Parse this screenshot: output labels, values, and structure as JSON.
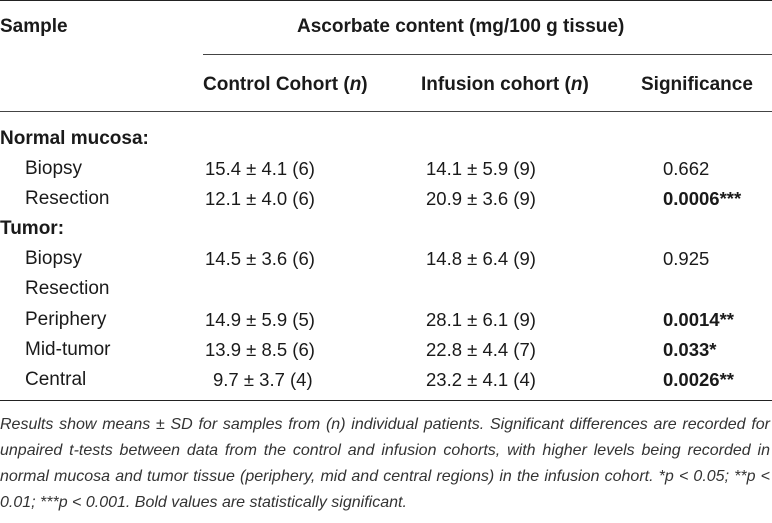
{
  "header": {
    "sample_label": "Sample",
    "group_title": "Ascorbate content (mg/100 g tissue)",
    "col_control": "Control Cohort (",
    "col_control_n": "n",
    "col_control_close": ")",
    "col_infusion": "Infusion cohort (",
    "col_infusion_n": "n",
    "col_infusion_close": ")",
    "col_significance": "Significance"
  },
  "sections": [
    {
      "title": "Normal mucosa:",
      "rows": [
        {
          "label": "Biopsy",
          "control": "15.4 ± 4.1 (6)",
          "infusion": "14.1 ± 5.9 (9)",
          "significance": "0.662",
          "significant": false
        },
        {
          "label": "Resection",
          "control": "12.1 ± 4.0 (6)",
          "infusion": "20.9 ± 3.6 (9)",
          "significance": "0.0006***",
          "significant": true
        }
      ]
    },
    {
      "title": "Tumor:",
      "rows": [
        {
          "label": "Biopsy",
          "control": "14.5 ± 3.6 (6)",
          "infusion": "14.8 ± 6.4 (9)",
          "significance": "0.925",
          "significant": false
        },
        {
          "label": "Resection",
          "control": "",
          "infusion": "",
          "significance": "",
          "significant": false
        },
        {
          "label": "Periphery",
          "control": "14.9 ± 5.9 (5)",
          "infusion": "28.1 ± 6.1 (9)",
          "significance": "0.0014**",
          "significant": true
        },
        {
          "label": "Mid-tumor",
          "control": "13.9 ± 8.5 (6)",
          "infusion": "22.8 ± 4.4 (7)",
          "significance": "0.033*",
          "significant": true
        },
        {
          "label": "Central",
          "control": "9.7 ± 3.7 (4)",
          "infusion": "23.2 ± 4.1 (4)",
          "significance": "0.0026**",
          "significant": true
        }
      ]
    }
  ],
  "footnote": "Results show means ± SD for samples from (n) individual patients. Significant differences are recorded for unpaired t-tests between data from the control and infusion cohorts, with higher levels being recorded in normal mucosa and tumor tissue (periphery, mid and central regions) in the infusion cohort. *p < 0.05; **p < 0.01; ***p < 0.001. Bold values are statistically significant."
}
